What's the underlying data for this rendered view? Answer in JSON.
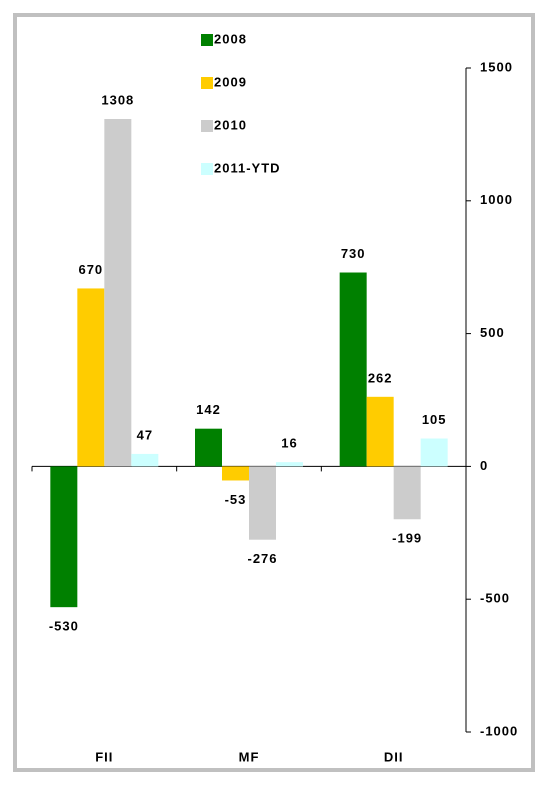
{
  "chart_data": {
    "type": "bar",
    "categories": [
      "FII",
      "MF",
      "DII"
    ],
    "series": [
      {
        "name": "2008",
        "color": "#008000",
        "values": [
          -530,
          142,
          730
        ]
      },
      {
        "name": "2009",
        "color": "#ffcc00",
        "values": [
          670,
          -53,
          262
        ]
      },
      {
        "name": "2010",
        "color": "#cccccc",
        "values": [
          1308,
          -276,
          -199
        ]
      },
      {
        "name": "2011-YTD",
        "color": "#ccffff",
        "values": [
          47,
          16,
          105
        ]
      }
    ],
    "ylim": [
      -1000,
      1500
    ],
    "yticks": [
      -1000,
      -500,
      0,
      500,
      1000,
      1500
    ],
    "y_axis_side": "right"
  }
}
